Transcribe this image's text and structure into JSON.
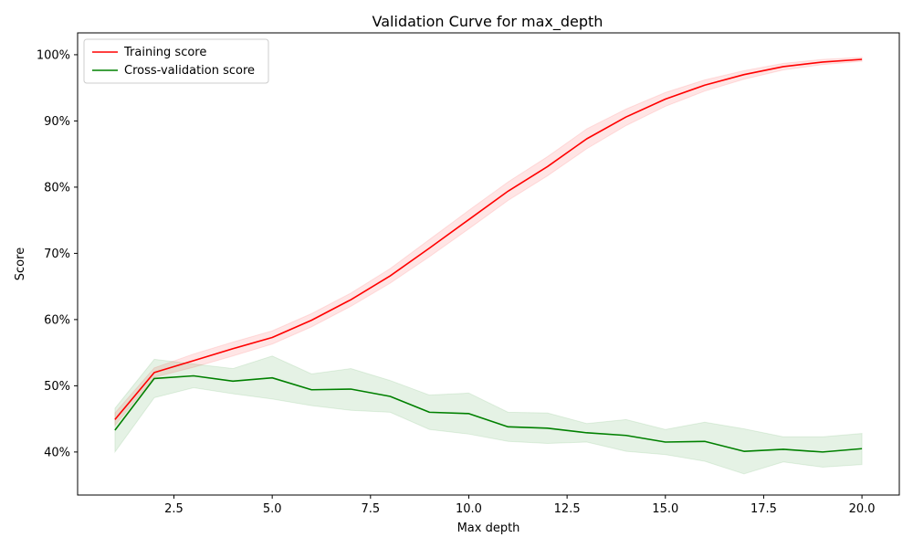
{
  "chart_data": {
    "type": "line",
    "title": "Validation Curve for max_depth",
    "xlabel": "Max depth",
    "ylabel": "Score",
    "xlim": [
      0.05,
      20.95
    ],
    "ylim": [
      0.335,
      1.033
    ],
    "xticks": [
      2.5,
      5.0,
      7.5,
      10.0,
      12.5,
      15.0,
      17.5,
      20.0
    ],
    "xtick_labels": [
      "2.5",
      "5.0",
      "7.5",
      "10.0",
      "12.5",
      "15.0",
      "17.5",
      "20.0"
    ],
    "yticks": [
      0.4,
      0.5,
      0.6,
      0.7,
      0.8,
      0.9,
      1.0
    ],
    "ytick_labels": [
      "40%",
      "50%",
      "60%",
      "70%",
      "80%",
      "90%",
      "100%"
    ],
    "grid": false,
    "legend_position": "top-left",
    "x": [
      1,
      2,
      3,
      4,
      5,
      6,
      7,
      8,
      9,
      10,
      11,
      12,
      13,
      14,
      15,
      16,
      17,
      18,
      19,
      20
    ],
    "series": [
      {
        "name": "Training score",
        "color": "#ff0000",
        "values": [
          0.449,
          0.52,
          0.538,
          0.556,
          0.573,
          0.599,
          0.63,
          0.666,
          0.708,
          0.751,
          0.794,
          0.831,
          0.873,
          0.906,
          0.933,
          0.954,
          0.97,
          0.982,
          0.989,
          0.993
        ],
        "lower": [
          0.44,
          0.513,
          0.528,
          0.545,
          0.563,
          0.589,
          0.62,
          0.655,
          0.695,
          0.737,
          0.78,
          0.817,
          0.858,
          0.893,
          0.922,
          0.945,
          0.963,
          0.977,
          0.985,
          0.99
        ],
        "upper": [
          0.459,
          0.527,
          0.548,
          0.566,
          0.583,
          0.609,
          0.64,
          0.677,
          0.721,
          0.765,
          0.808,
          0.846,
          0.888,
          0.918,
          0.943,
          0.962,
          0.976,
          0.987,
          0.993,
          0.996
        ]
      },
      {
        "name": "Cross-validation score",
        "color": "#008000",
        "values": [
          0.433,
          0.511,
          0.515,
          0.507,
          0.512,
          0.494,
          0.495,
          0.484,
          0.46,
          0.458,
          0.438,
          0.436,
          0.429,
          0.425,
          0.415,
          0.416,
          0.401,
          0.404,
          0.4,
          0.405
        ],
        "lower": [
          0.4,
          0.482,
          0.497,
          0.488,
          0.48,
          0.47,
          0.463,
          0.46,
          0.434,
          0.427,
          0.416,
          0.413,
          0.415,
          0.401,
          0.396,
          0.386,
          0.367,
          0.385,
          0.377,
          0.381
        ],
        "upper": [
          0.466,
          0.54,
          0.533,
          0.526,
          0.545,
          0.518,
          0.526,
          0.508,
          0.486,
          0.489,
          0.46,
          0.459,
          0.443,
          0.449,
          0.434,
          0.445,
          0.435,
          0.423,
          0.423,
          0.428
        ]
      }
    ]
  }
}
